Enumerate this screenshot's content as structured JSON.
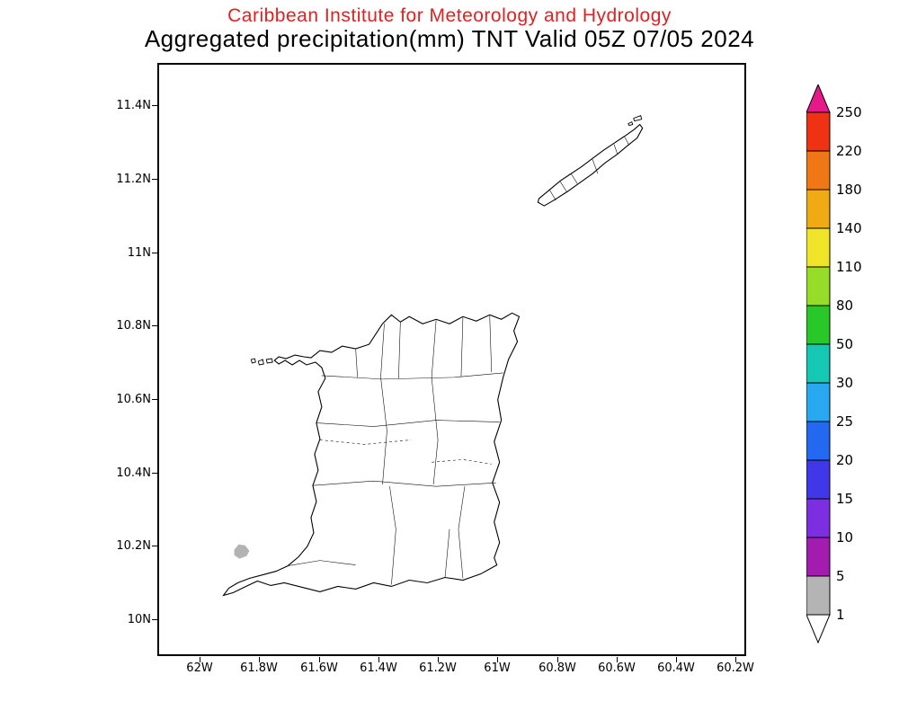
{
  "header": {
    "line1": "Caribbean Institute for Meteorology and Hydrology",
    "line1_color": "#dd2222",
    "line2": "Aggregated precipitation(mm) TNT Valid 05Z 07/05 2024",
    "line2_color": "#000000"
  },
  "map": {
    "y_axis": {
      "labels": [
        "11.4N",
        "11.2N",
        "11N",
        "10.8N",
        "10.6N",
        "10.4N",
        "10.2N",
        "10N"
      ]
    },
    "x_axis": {
      "labels": [
        "62W",
        "61.8W",
        "61.6W",
        "61.4W",
        "61.2W",
        "61W",
        "60.8W",
        "60.6W",
        "60.4W",
        "60.2W"
      ]
    },
    "precip_spot": {
      "color": "#b3b3b3",
      "range_mm": "1-5"
    }
  },
  "colorbar": {
    "labels_top_to_bottom": [
      "250",
      "220",
      "180",
      "140",
      "110",
      "80",
      "50",
      "30",
      "25",
      "20",
      "15",
      "10",
      "5",
      "1"
    ],
    "band_colors_top_to_bottom": [
      "#f03214",
      "#f07814",
      "#f0aa14",
      "#f0e428",
      "#96dc28",
      "#28c828",
      "#14c8b4",
      "#28a8f0",
      "#2268f0",
      "#4038e8",
      "#7c2fe0",
      "#a21caf",
      "#b4b4b4"
    ],
    "arrow_top_color": "#e6198b",
    "arrow_bottom_color": "#ffffff"
  }
}
